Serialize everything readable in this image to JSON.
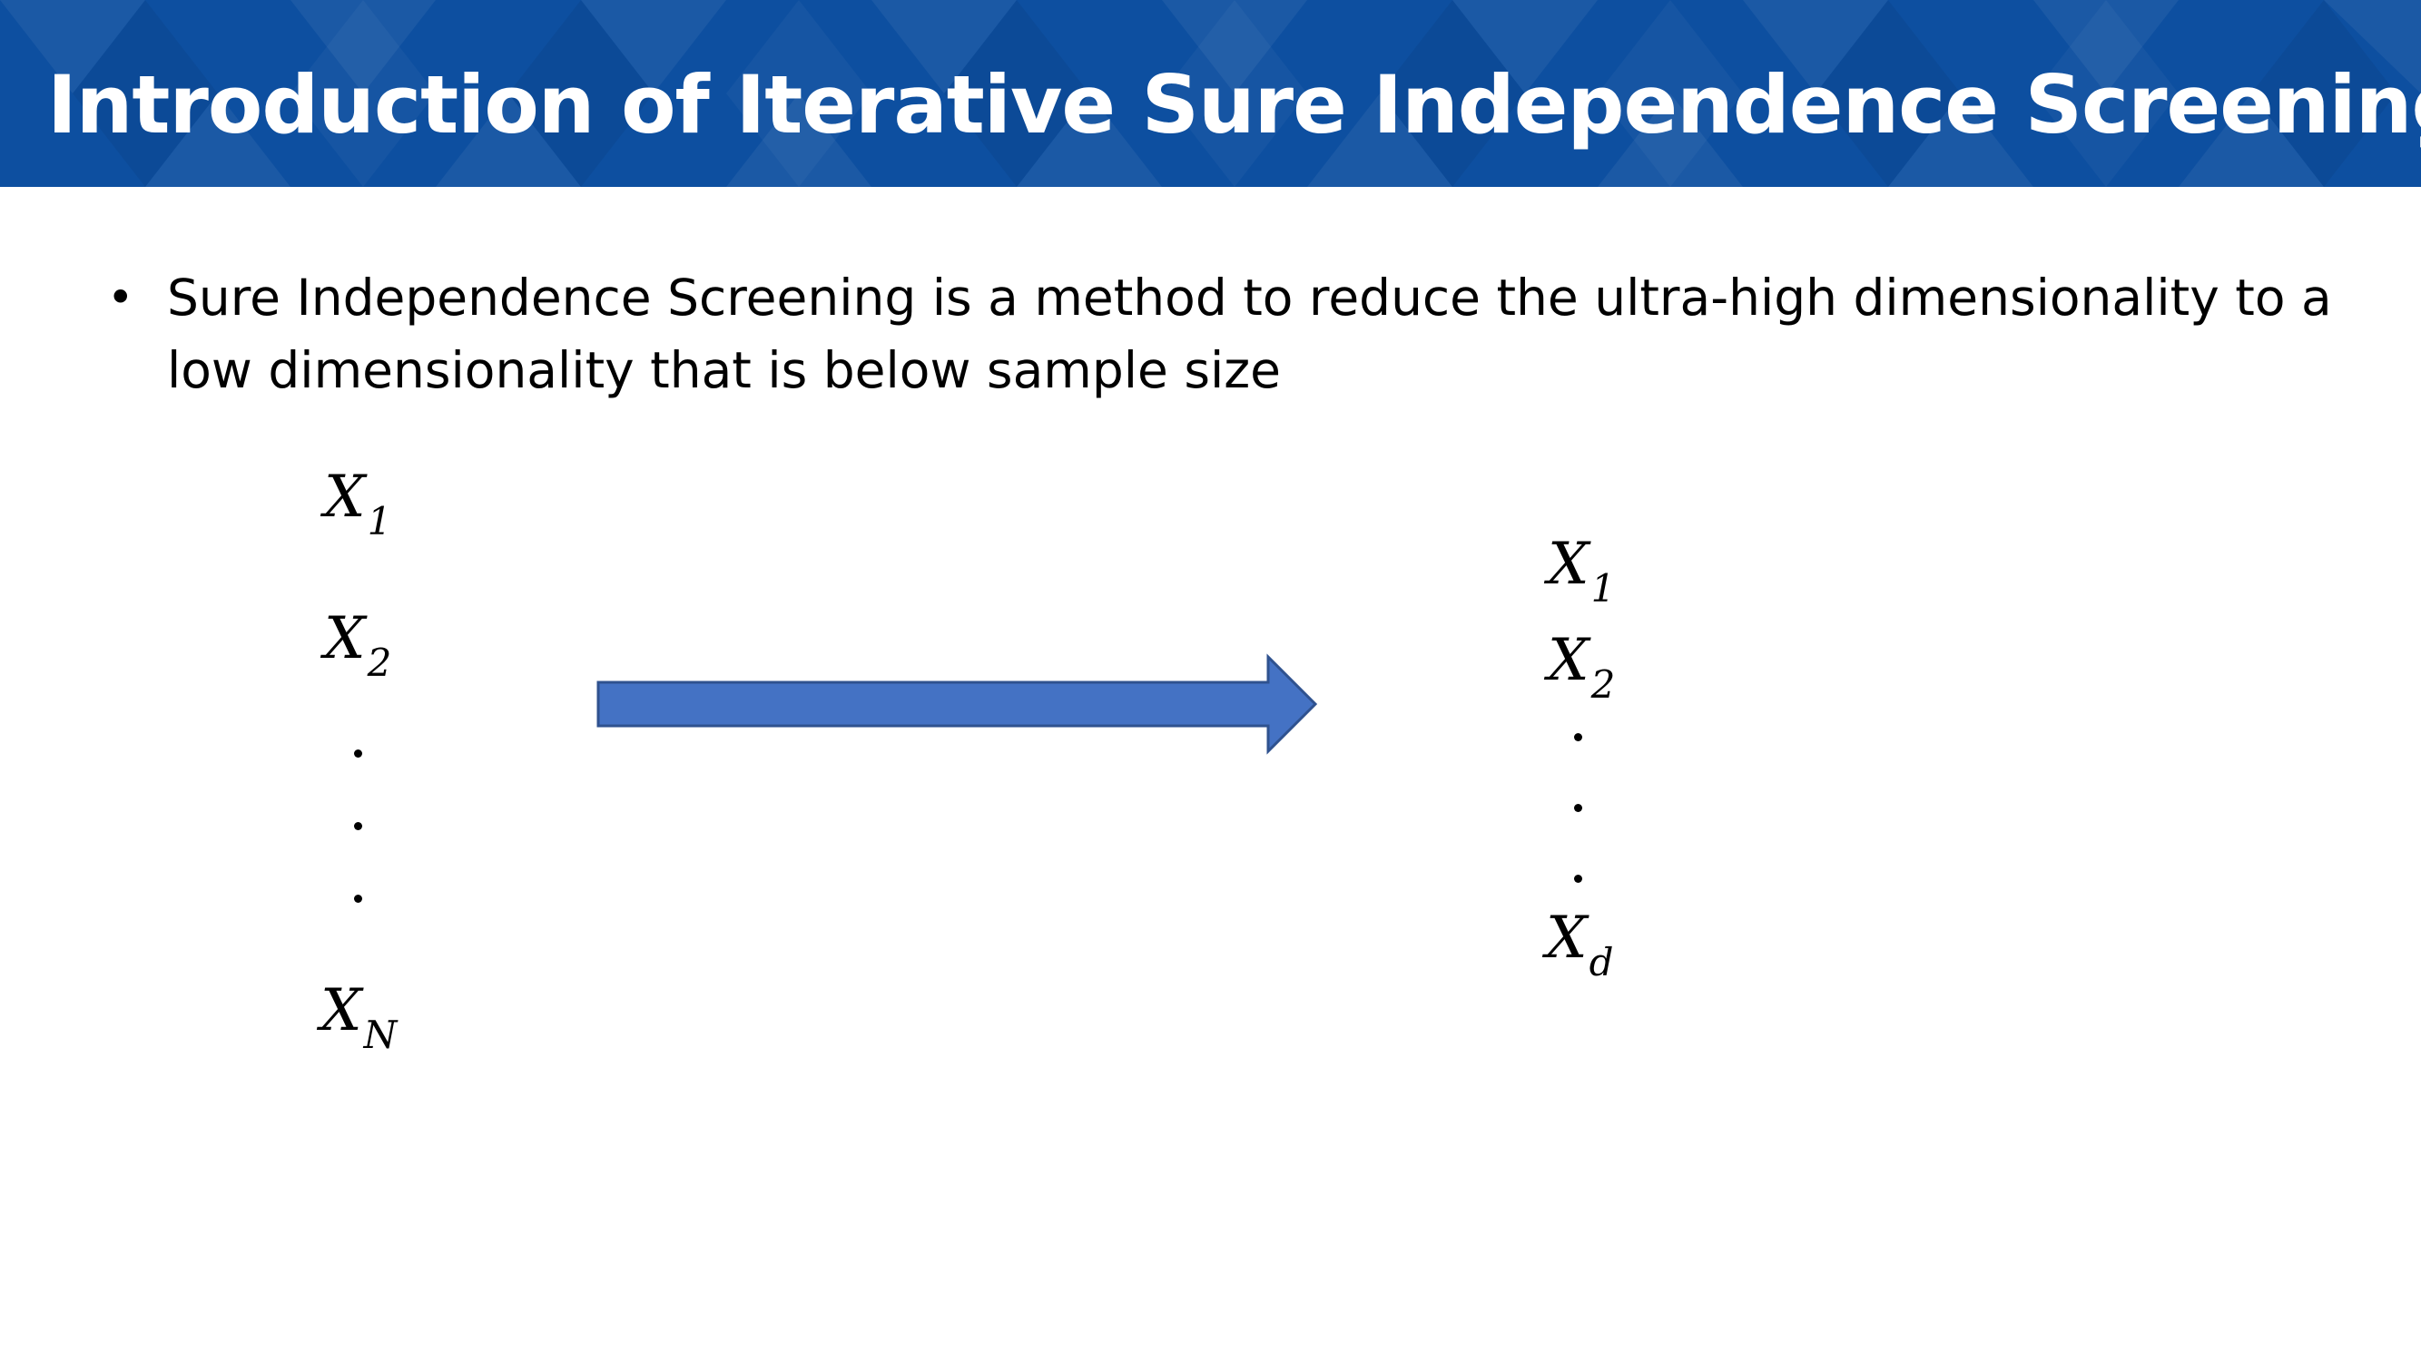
{
  "slide": {
    "title": "Introduction of Iterative Sure Independence Screening",
    "bullet": {
      "marker": "•",
      "text": "Sure Independence Screening is a method to reduce the ultra-high dimensionality to a low dimensionality that is below sample size"
    }
  },
  "diagram": {
    "left_column": [
      {
        "symbol": "X",
        "subscript": "1"
      },
      {
        "symbol": "X",
        "subscript": "2"
      },
      {
        "symbol": "X",
        "subscript": "N"
      }
    ],
    "right_column": [
      {
        "symbol": "X",
        "subscript": "1"
      },
      {
        "symbol": "X",
        "subscript": "2"
      },
      {
        "symbol": "X",
        "subscript": "d"
      }
    ],
    "colors": {
      "header": "#0d4fa0",
      "arrow_fill": "#4472c4",
      "arrow_stroke": "#2f528f"
    }
  }
}
